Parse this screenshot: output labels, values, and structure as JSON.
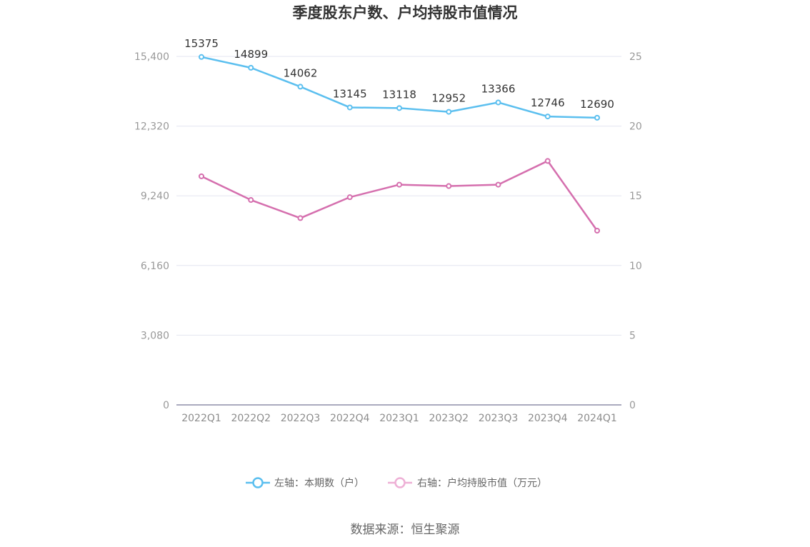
{
  "chart_data": {
    "type": "line",
    "title": "季度股东户数、户均持股市值情况",
    "categories": [
      "2022Q1",
      "2022Q2",
      "2022Q3",
      "2022Q4",
      "2023Q1",
      "2023Q2",
      "2023Q3",
      "2023Q4",
      "2024Q1"
    ],
    "left_axis": {
      "range": [
        0,
        15400
      ],
      "ticks": [
        "0",
        "3,080",
        "6,160",
        "9,240",
        "12,320",
        "15,400"
      ],
      "tick_values": [
        0,
        3080,
        6160,
        9240,
        12320,
        15400
      ]
    },
    "right_axis": {
      "range": [
        0,
        25
      ],
      "ticks": [
        "0",
        "5",
        "10",
        "15",
        "20",
        "25"
      ],
      "tick_values": [
        0,
        5,
        10,
        15,
        20,
        25
      ]
    },
    "series": [
      {
        "name": "左轴：本期数（户）",
        "axis": "left",
        "color": "#5bbfef",
        "values": [
          15375,
          14899,
          14062,
          13145,
          13118,
          12952,
          13366,
          12746,
          12690
        ],
        "labels": [
          "15375",
          "14899",
          "14062",
          "13145",
          "13118",
          "12952",
          "13366",
          "12746",
          "12690"
        ]
      },
      {
        "name": "右轴：户均持股市值（万元）",
        "axis": "right",
        "color": "#d56fae",
        "legend_color": "#eeb0d6",
        "values": [
          16.4,
          14.7,
          13.4,
          14.9,
          15.8,
          15.7,
          15.8,
          17.5,
          12.5
        ]
      }
    ],
    "grid": true,
    "legend_position": "bottom"
  },
  "footer": {
    "source": "数据来源：恒生聚源"
  }
}
